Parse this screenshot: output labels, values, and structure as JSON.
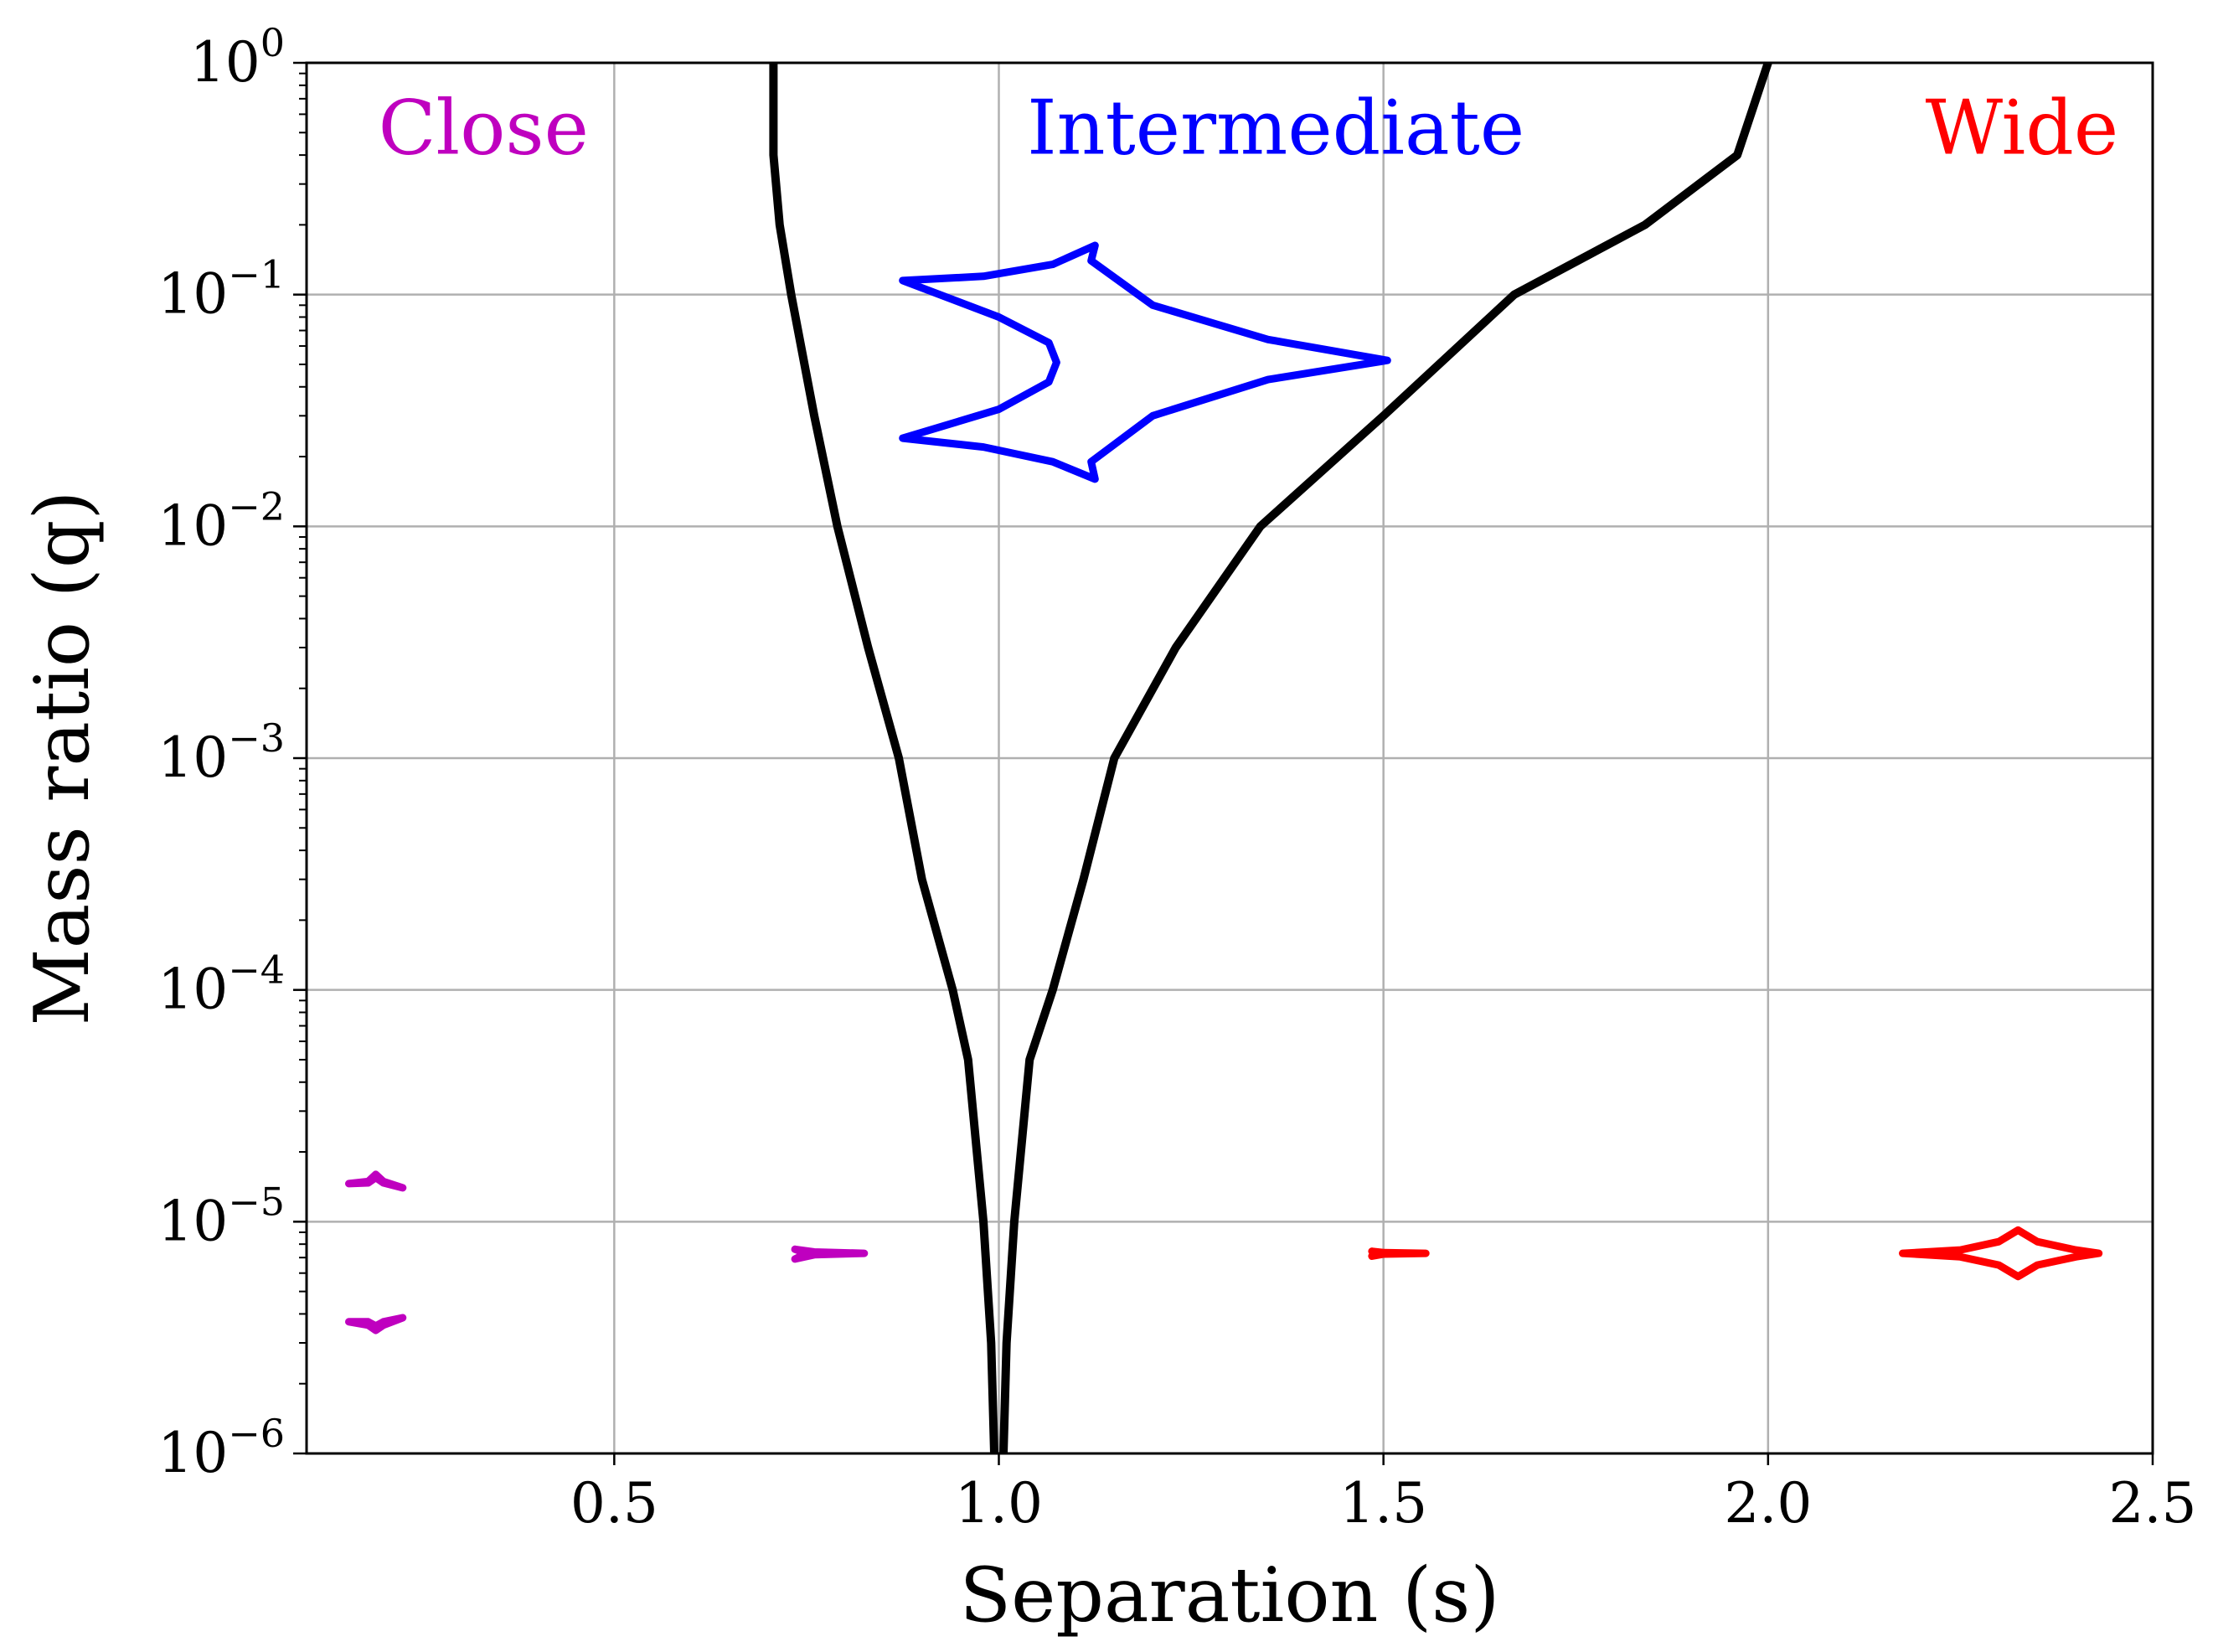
{
  "chart_data": {
    "type": "line",
    "xlabel": "Separation (s)",
    "ylabel": "Mass ratio (q)",
    "xlim": [
      0.1,
      2.5
    ],
    "ylim": [
      1e-06,
      1
    ],
    "yscale": "log",
    "grid": true,
    "x_ticks": [
      {
        "value": 0.5,
        "label": "0.5"
      },
      {
        "value": 1.0,
        "label": "1.0"
      },
      {
        "value": 1.5,
        "label": "1.5"
      },
      {
        "value": 2.0,
        "label": "2.0"
      },
      {
        "value": 2.5,
        "label": "2.5"
      }
    ],
    "y_ticks": [
      {
        "value": 1e-06,
        "base": "10",
        "exp": "−6"
      },
      {
        "value": 1e-05,
        "base": "10",
        "exp": "−5"
      },
      {
        "value": 0.0001,
        "base": "10",
        "exp": "−4"
      },
      {
        "value": 0.001,
        "base": "10",
        "exp": "−3"
      },
      {
        "value": 0.01,
        "base": "10",
        "exp": "−2"
      },
      {
        "value": 0.1,
        "base": "10",
        "exp": "−1"
      },
      {
        "value": 1,
        "base": "10",
        "exp": "0"
      }
    ],
    "region_labels": [
      {
        "text": "Close",
        "color": "#bf00bf",
        "s": 0.33,
        "q": 0.52
      },
      {
        "text": "Intermediate",
        "color": "#0000ff",
        "s": 1.36,
        "q": 0.52
      },
      {
        "text": "Wide",
        "color": "#ff0000",
        "s": 2.33,
        "q": 0.52
      }
    ],
    "boundaries": [
      {
        "color": "#000000",
        "points": [
          [
            0.994,
            1e-06
          ],
          [
            0.99,
            3e-06
          ],
          [
            0.98,
            1e-05
          ],
          [
            0.96,
            5e-05
          ],
          [
            0.94,
            0.0001
          ],
          [
            0.9,
            0.0003
          ],
          [
            0.87,
            0.001
          ],
          [
            0.83,
            0.003
          ],
          [
            0.79,
            0.01
          ],
          [
            0.76,
            0.03
          ],
          [
            0.73,
            0.1
          ],
          [
            0.715,
            0.2
          ],
          [
            0.707,
            0.4
          ],
          [
            0.707,
            1
          ]
        ]
      },
      {
        "color": "#000000",
        "points": [
          [
            1.006,
            1e-06
          ],
          [
            1.01,
            3e-06
          ],
          [
            1.02,
            1e-05
          ],
          [
            1.04,
            5e-05
          ],
          [
            1.07,
            0.0001
          ],
          [
            1.11,
            0.0003
          ],
          [
            1.15,
            0.001
          ],
          [
            1.23,
            0.003
          ],
          [
            1.34,
            0.01
          ],
          [
            1.5,
            0.03
          ],
          [
            1.67,
            0.1
          ],
          [
            1.84,
            0.2
          ],
          [
            1.96,
            0.4
          ],
          [
            2.0,
            1
          ]
        ]
      }
    ],
    "caustics": [
      {
        "region": "Intermediate",
        "color": "#0000ff",
        "points": [
          [
            1.125,
            0.163
          ],
          [
            1.12,
            0.14
          ],
          [
            1.2,
            0.09
          ],
          [
            1.35,
            0.064
          ],
          [
            1.505,
            0.052
          ],
          [
            1.35,
            0.043
          ],
          [
            1.2,
            0.03
          ],
          [
            1.12,
            0.019
          ],
          [
            1.125,
            0.016
          ],
          [
            1.07,
            0.019
          ],
          [
            0.98,
            0.022
          ],
          [
            0.875,
            0.024
          ],
          [
            1.0,
            0.032
          ],
          [
            1.065,
            0.042
          ],
          [
            1.075,
            0.051
          ],
          [
            1.065,
            0.062
          ],
          [
            1.0,
            0.08
          ],
          [
            0.875,
            0.115
          ],
          [
            0.98,
            0.12
          ],
          [
            1.07,
            0.135
          ],
          [
            1.125,
            0.163
          ]
        ]
      },
      {
        "region": "Close",
        "color": "#bf00bf",
        "points": [
          [
            0.19,
            1.55e-05
          ],
          [
            0.2,
            1.47e-05
          ],
          [
            0.225,
            1.4e-05
          ],
          [
            0.2,
            1.49e-05
          ],
          [
            0.19,
            1.6e-05
          ],
          [
            0.18,
            1.49e-05
          ],
          [
            0.155,
            1.46e-05
          ],
          [
            0.18,
            1.47e-05
          ],
          [
            0.19,
            1.55e-05
          ]
        ]
      },
      {
        "region": "Close",
        "color": "#bf00bf",
        "points": [
          [
            0.19,
            3.55e-06
          ],
          [
            0.2,
            3.7e-06
          ],
          [
            0.225,
            3.85e-06
          ],
          [
            0.2,
            3.58e-06
          ],
          [
            0.19,
            3.4e-06
          ],
          [
            0.18,
            3.58e-06
          ],
          [
            0.155,
            3.7e-06
          ],
          [
            0.18,
            3.7e-06
          ],
          [
            0.19,
            3.55e-06
          ]
        ]
      },
      {
        "region": "Close",
        "color": "#bf00bf",
        "points": [
          [
            0.735,
            7.6e-06
          ],
          [
            0.76,
            7.4e-06
          ],
          [
            0.825,
            7.3e-06
          ],
          [
            0.76,
            7.2e-06
          ],
          [
            0.735,
            6.9e-06
          ],
          [
            0.75,
            7.3e-06
          ],
          [
            0.735,
            7.6e-06
          ]
        ]
      },
      {
        "region": "Wide",
        "color": "#ff0000",
        "points": [
          [
            1.485,
            7.45e-06
          ],
          [
            1.5,
            7.35e-06
          ],
          [
            1.555,
            7.3e-06
          ],
          [
            1.5,
            7.25e-06
          ],
          [
            1.485,
            7.1e-06
          ],
          [
            1.49,
            7.3e-06
          ],
          [
            1.485,
            7.45e-06
          ]
        ]
      },
      {
        "region": "Wide",
        "color": "#ff0000",
        "points": [
          [
            2.175,
            7.3e-06
          ],
          [
            2.25,
            7.55e-06
          ],
          [
            2.3,
            8.2e-06
          ],
          [
            2.325,
            9.2e-06
          ],
          [
            2.35,
            8.2e-06
          ],
          [
            2.4,
            7.55e-06
          ],
          [
            2.43,
            7.3e-06
          ],
          [
            2.4,
            7.05e-06
          ],
          [
            2.35,
            6.5e-06
          ],
          [
            2.325,
            5.8e-06
          ],
          [
            2.3,
            6.5e-06
          ],
          [
            2.25,
            7.05e-06
          ],
          [
            2.175,
            7.3e-06
          ]
        ]
      }
    ]
  }
}
